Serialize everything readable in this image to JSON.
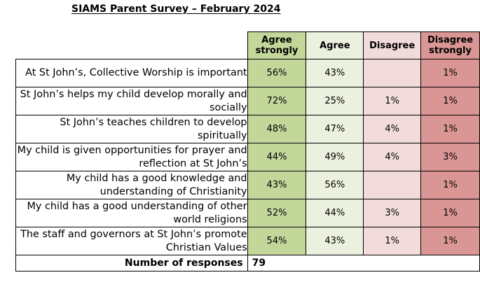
{
  "title": "SIAMS Parent Survey – February 2024",
  "columns": {
    "agree_strongly": "Agree strongly",
    "agree": "Agree",
    "disagree": "Disagree",
    "disagree_strongly": "Disagree strongly"
  },
  "colors": {
    "agree_strongly_bg": "#c4d79b",
    "agree_bg": "#ebf1de",
    "disagree_bg": "#f2dcdb",
    "disagree_strongly_bg": "#da9694"
  },
  "rows": [
    {
      "statement": "At St John’s, Collective Worship is important",
      "agree_strongly": "56%",
      "agree": "43%",
      "disagree": "",
      "disagree_strongly": "1%"
    },
    {
      "statement": "St John’s helps my child develop morally and socially",
      "agree_strongly": "72%",
      "agree": "25%",
      "disagree": "1%",
      "disagree_strongly": "1%"
    },
    {
      "statement": "St John’s teaches children to develop spiritually",
      "agree_strongly": "48%",
      "agree": "47%",
      "disagree": "4%",
      "disagree_strongly": "1%"
    },
    {
      "statement": "My child is given opportunities for prayer and reflection at St John’s",
      "agree_strongly": "44%",
      "agree": "49%",
      "disagree": "4%",
      "disagree_strongly": "3%"
    },
    {
      "statement": "My child has a good knowledge and understanding of Christianity",
      "agree_strongly": "43%",
      "agree": "56%",
      "disagree": "",
      "disagree_strongly": "1%"
    },
    {
      "statement": "My child has a good understanding of other world religions",
      "agree_strongly": "52%",
      "agree": "44%",
      "disagree": "3%",
      "disagree_strongly": "1%"
    },
    {
      "statement": "The staff and governors at St John’s promote Christian Values",
      "agree_strongly": "54%",
      "agree": "43%",
      "disagree": "1%",
      "disagree_strongly": "1%"
    }
  ],
  "responses": {
    "label": "Number of responses",
    "value": "79"
  }
}
